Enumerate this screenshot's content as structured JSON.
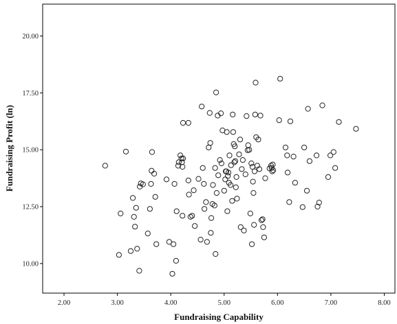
{
  "chart_data": {
    "type": "scatter",
    "title": "",
    "xlabel": "Fundraising Capability",
    "ylabel": "Fundraising Profit (ln)",
    "xlim": [
      1.6,
      8.2
    ],
    "ylim": [
      8.7,
      21.4
    ],
    "xticks": [
      2.0,
      3.0,
      4.0,
      5.0,
      6.0,
      7.0,
      8.0
    ],
    "xtick_labels": [
      "2.00",
      "3.00",
      "4.00",
      "5.00",
      "6.00",
      "7.00",
      "8.00"
    ],
    "yticks": [
      10.0,
      12.5,
      15.0,
      17.5,
      20.0
    ],
    "ytick_labels": [
      "10.00",
      "12.50",
      "15.00",
      "17.50",
      "20.00"
    ],
    "grid": false,
    "legend": "none",
    "marker": "open-circle",
    "points": [
      [
        2.77,
        14.3
      ],
      [
        3.03,
        10.38
      ],
      [
        3.06,
        12.2
      ],
      [
        3.16,
        14.92
      ],
      [
        3.25,
        10.55
      ],
      [
        3.29,
        12.88
      ],
      [
        3.31,
        12.05
      ],
      [
        3.33,
        11.62
      ],
      [
        3.35,
        12.45
      ],
      [
        3.37,
        10.65
      ],
      [
        3.41,
        9.68
      ],
      [
        3.42,
        13.38
      ],
      [
        3.44,
        13.52
      ],
      [
        3.48,
        13.48
      ],
      [
        3.57,
        11.32
      ],
      [
        3.61,
        12.4
      ],
      [
        3.63,
        13.5
      ],
      [
        3.64,
        14.08
      ],
      [
        3.65,
        14.9
      ],
      [
        3.69,
        13.95
      ],
      [
        3.71,
        12.93
      ],
      [
        3.73,
        10.85
      ],
      [
        3.92,
        13.7
      ],
      [
        3.97,
        10.95
      ],
      [
        4.03,
        9.55
      ],
      [
        4.05,
        10.85
      ],
      [
        4.07,
        13.5
      ],
      [
        4.1,
        10.12
      ],
      [
        4.11,
        12.3
      ],
      [
        4.14,
        14.3
      ],
      [
        4.15,
        14.45
      ],
      [
        4.18,
        14.75
      ],
      [
        4.2,
        14.62
      ],
      [
        4.21,
        14.45
      ],
      [
        4.23,
        14.62
      ],
      [
        4.22,
        14.25
      ],
      [
        4.22,
        12.1
      ],
      [
        4.23,
        16.18
      ],
      [
        4.33,
        16.18
      ],
      [
        4.33,
        13.65
      ],
      [
        4.34,
        13.03
      ],
      [
        4.37,
        12.05
      ],
      [
        4.4,
        12.1
      ],
      [
        4.43,
        13.22
      ],
      [
        4.45,
        11.65
      ],
      [
        4.52,
        13.72
      ],
      [
        4.56,
        11.05
      ],
      [
        4.58,
        16.9
      ],
      [
        4.6,
        14.2
      ],
      [
        4.62,
        13.5
      ],
      [
        4.63,
        12.4
      ],
      [
        4.66,
        12.7
      ],
      [
        4.68,
        10.95
      ],
      [
        4.71,
        15.1
      ],
      [
        4.73,
        16.62
      ],
      [
        4.74,
        15.3
      ],
      [
        4.75,
        11.35
      ],
      [
        4.76,
        12.0
      ],
      [
        4.78,
        12.62
      ],
      [
        4.79,
        13.45
      ],
      [
        4.82,
        12.55
      ],
      [
        4.83,
        14.2
      ],
      [
        4.84,
        10.42
      ],
      [
        4.85,
        17.52
      ],
      [
        4.86,
        13.1
      ],
      [
        4.88,
        16.5
      ],
      [
        4.89,
        13.88
      ],
      [
        4.92,
        14.55
      ],
      [
        4.94,
        16.6
      ],
      [
        4.95,
        14.4
      ],
      [
        4.97,
        15.85
      ],
      [
        5.0,
        13.2
      ],
      [
        5.02,
        13.7
      ],
      [
        5.03,
        14.05
      ],
      [
        5.04,
        14.05
      ],
      [
        5.05,
        15.78
      ],
      [
        5.06,
        12.3
      ],
      [
        5.07,
        13.85
      ],
      [
        5.08,
        14.0
      ],
      [
        5.09,
        13.55
      ],
      [
        5.1,
        14.75
      ],
      [
        5.12,
        13.45
      ],
      [
        5.13,
        14.32
      ],
      [
        5.15,
        12.75
      ],
      [
        5.16,
        16.55
      ],
      [
        5.17,
        15.78
      ],
      [
        5.18,
        15.25
      ],
      [
        5.19,
        14.45
      ],
      [
        5.2,
        15.15
      ],
      [
        5.21,
        14.5
      ],
      [
        5.22,
        13.35
      ],
      [
        5.23,
        13.8
      ],
      [
        5.24,
        12.85
      ],
      [
        5.28,
        14.8
      ],
      [
        5.3,
        15.45
      ],
      [
        5.31,
        11.6
      ],
      [
        5.33,
        14.15
      ],
      [
        5.35,
        14.55
      ],
      [
        5.37,
        11.45
      ],
      [
        5.4,
        13.92
      ],
      [
        5.42,
        16.48
      ],
      [
        5.44,
        14.98
      ],
      [
        5.45,
        15.2
      ],
      [
        5.47,
        15.0
      ],
      [
        5.49,
        12.2
      ],
      [
        5.51,
        14.4
      ],
      [
        5.52,
        10.85
      ],
      [
        5.53,
        14.25
      ],
      [
        5.54,
        13.6
      ],
      [
        5.55,
        13.1
      ],
      [
        5.56,
        11.7
      ],
      [
        5.57,
        14.05
      ],
      [
        5.58,
        16.55
      ],
      [
        5.59,
        17.95
      ],
      [
        5.6,
        15.55
      ],
      [
        5.62,
        14.3
      ],
      [
        5.64,
        15.45
      ],
      [
        5.66,
        14.15
      ],
      [
        5.68,
        16.5
      ],
      [
        5.7,
        11.9
      ],
      [
        5.72,
        11.95
      ],
      [
        5.73,
        11.6
      ],
      [
        5.75,
        11.15
      ],
      [
        5.77,
        13.75
      ],
      [
        5.85,
        14.18
      ],
      [
        5.88,
        14.3
      ],
      [
        5.89,
        14.2
      ],
      [
        5.9,
        14.05
      ],
      [
        5.91,
        14.35
      ],
      [
        5.92,
        14.1
      ],
      [
        6.03,
        16.3
      ],
      [
        6.05,
        18.12
      ],
      [
        6.15,
        15.1
      ],
      [
        6.18,
        14.75
      ],
      [
        6.19,
        14.0
      ],
      [
        6.22,
        12.7
      ],
      [
        6.24,
        16.25
      ],
      [
        6.3,
        14.7
      ],
      [
        6.33,
        13.55
      ],
      [
        6.47,
        12.48
      ],
      [
        6.5,
        15.1
      ],
      [
        6.55,
        13.2
      ],
      [
        6.57,
        16.8
      ],
      [
        6.6,
        14.5
      ],
      [
        6.73,
        14.75
      ],
      [
        6.75,
        12.5
      ],
      [
        6.78,
        12.68
      ],
      [
        6.84,
        16.95
      ],
      [
        6.95,
        13.8
      ],
      [
        6.99,
        14.75
      ],
      [
        7.05,
        14.9
      ],
      [
        7.08,
        14.2
      ],
      [
        7.15,
        16.22
      ],
      [
        7.47,
        15.92
      ]
    ]
  }
}
